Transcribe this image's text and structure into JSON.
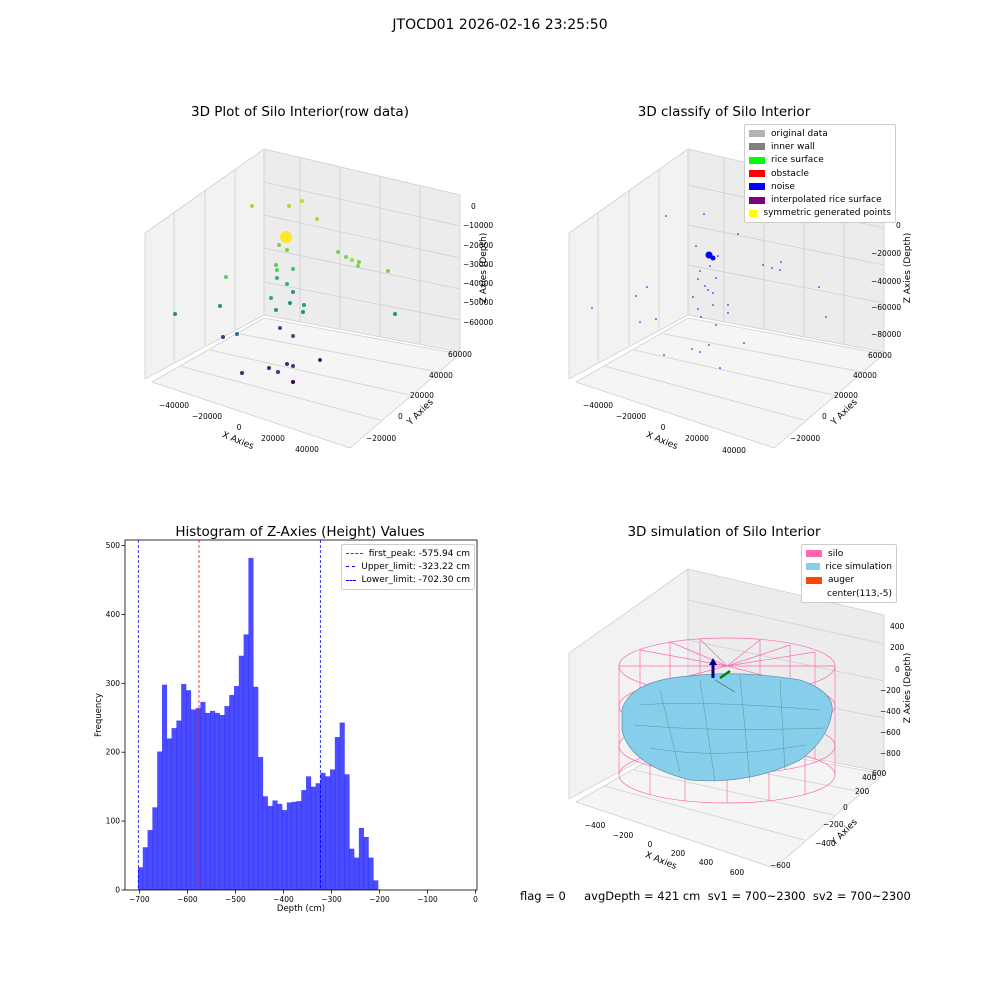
{
  "suptitle": "JTOCD01 2026-02-16 23:25:50",
  "panels": {
    "raw": {
      "title": "3D Plot of Silo Interior(row data)",
      "xlabel": "X Axies",
      "ylabel": "Y Axies",
      "zlabel": "Z Axies (Depth)",
      "xticks": [
        "−40000",
        "−20000",
        "0",
        "20000",
        "40000"
      ],
      "yticks": [
        "−20000",
        "0",
        "20000",
        "40000",
        "60000"
      ],
      "zticks": [
        "0",
        "−10000",
        "−20000",
        "−30000",
        "−40000",
        "−50000",
        "−60000"
      ]
    },
    "classify": {
      "title": "3D classify of Silo Interior",
      "xlabel": "X Axies",
      "ylabel": "Y Axies",
      "zlabel": "Z Axies (Depth)",
      "xticks": [
        "−40000",
        "−20000",
        "0",
        "20000",
        "40000"
      ],
      "yticks": [
        "−20000",
        "0",
        "20000",
        "40000",
        "60000"
      ],
      "zticks": [
        "0",
        "−20000",
        "−40000",
        "−60000",
        "−80000"
      ],
      "legend": [
        {
          "label": "original data",
          "color": "#b3b3b3"
        },
        {
          "label": "inner wall",
          "color": "#808080"
        },
        {
          "label": "rice surface",
          "color": "#00ff00"
        },
        {
          "label": "obstacle",
          "color": "#ff0000"
        },
        {
          "label": "noise",
          "color": "#0000ff"
        },
        {
          "label": "interpolated rice surface",
          "color": "#800080"
        },
        {
          "label": "symmetric generated points",
          "color": "#ffff00"
        }
      ]
    },
    "simulation": {
      "title": "3D simulation of Silo Interior",
      "xlabel": "X Axies",
      "ylabel": "Y Axies",
      "zlabel": "Z Axies (Depth)",
      "xticks": [
        "−400",
        "−200",
        "0",
        "200",
        "400",
        "600"
      ],
      "yticks": [
        "−600",
        "−400",
        "−200",
        "0",
        "200",
        "400",
        "600"
      ],
      "zticks": [
        "400",
        "200",
        "0",
        "−200",
        "−400",
        "−600",
        "−800"
      ],
      "legend": [
        {
          "label": "silo",
          "color": "#ff69b4"
        },
        {
          "label": "rice simulation",
          "color": "#87ceeb"
        },
        {
          "label": "auger",
          "color": "#ff4500"
        },
        {
          "label": "center(113,-5)",
          "color": ""
        }
      ]
    }
  },
  "chart_data": [
    {
      "type": "histogram",
      "title": "Histogram of Z-Axies (Height) Values",
      "xlabel": "Depth (cm)",
      "ylabel": "Frequency",
      "xlim": [
        -730,
        3
      ],
      "ylim": [
        0,
        508
      ],
      "color": "#0000ff",
      "bin_start": -703,
      "bin_width": 10,
      "values": [
        33,
        62,
        87,
        120,
        201,
        298,
        220,
        235,
        246,
        299,
        290,
        262,
        264,
        273,
        257,
        260,
        257,
        254,
        267,
        283,
        296,
        340,
        371,
        482,
        295,
        193,
        136,
        122,
        130,
        125,
        116,
        127,
        128,
        129,
        145,
        165,
        150,
        155,
        170,
        165,
        175,
        222,
        243,
        168,
        60,
        47,
        90,
        77,
        47,
        14
      ],
      "xticks": [
        "−700",
        "−600",
        "−500",
        "−400",
        "−300",
        "−200",
        "−100",
        "0"
      ],
      "yticks": [
        "0",
        "100",
        "200",
        "300",
        "400",
        "500"
      ],
      "vlines": [
        {
          "x": -575.94,
          "color": "#ff0000",
          "label": "first_peak: -575.94 cm"
        },
        {
          "x": -323.22,
          "color": "#0000ff",
          "label": "Upper_limit: -323.22 cm"
        },
        {
          "x": -702.3,
          "color": "#0000ff",
          "label": "Lower_limit: -702.30 cm"
        }
      ],
      "legend_position": "upper right"
    }
  ],
  "footer": "flag = 0     avgDepth = 421 cm  sv1 = 700~2300  sv2 = 700~2300"
}
